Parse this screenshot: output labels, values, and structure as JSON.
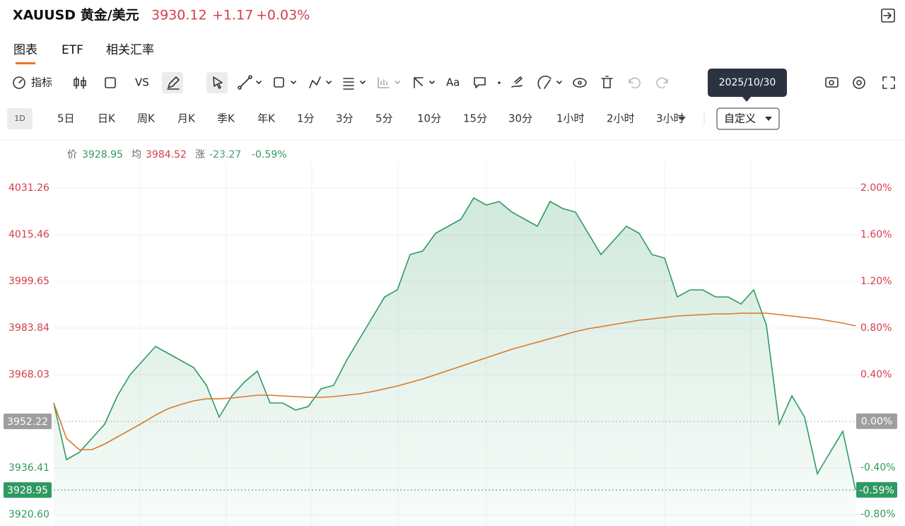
{
  "header": {
    "symbol": "XAUUSD 黄金/美元",
    "price": "3930.12",
    "change": "+1.17",
    "change_pct": "+0.03%"
  },
  "tabs": [
    "图表",
    "ETF",
    "相关汇率"
  ],
  "toolbar": {
    "indicators": "指标",
    "compare": "VS",
    "text": "Aa"
  },
  "tooltip": "2025/10/30",
  "timeframes": [
    "1D",
    "5日",
    "日K",
    "周K",
    "月K",
    "季K",
    "年K",
    "1分",
    "3分",
    "5分",
    "10分",
    "15分",
    "30分",
    "1小时",
    "2小时",
    "3小时"
  ],
  "custom": "自定义",
  "info": {
    "price_label": "价",
    "price": "3928.95",
    "avg_label": "均",
    "avg": "3984.52",
    "change_label": "涨",
    "change": "-23.27",
    "change_pct": "-0.59%"
  },
  "chart_data": {
    "type": "area",
    "ylim": [
      3916.77,
      4039.88
    ],
    "yticks": [
      4031.26,
      4015.46,
      3999.65,
      3983.84,
      3968.03,
      3936.41,
      {
        "value": 3920.6,
        "label": "3920.60"
      }
    ],
    "y2lim": [
      -0.9,
      2.22
    ],
    "y2ticks": [
      {
        "value": 2,
        "label": "2.00%"
      },
      {
        "value": 1.6,
        "label": "1.60%"
      },
      {
        "value": 1.2,
        "label": "1.20%"
      },
      {
        "value": 0.8,
        "label": "0.80%"
      },
      {
        "value": 0.4,
        "label": "0.40%"
      },
      {
        "value": -0.4,
        "label": "-0.40%"
      },
      {
        "value": -0.8,
        "label": "-0.80%"
      }
    ],
    "previous_close": {
      "value": 3952.22,
      "pct": {
        "value": 0,
        "label": "0.00%"
      }
    },
    "last_price": {
      "value": 3928.95,
      "pct": {
        "value": -0.59,
        "label": "-0.59%"
      }
    },
    "grid": true,
    "series": [
      {
        "color": "#2e9a62",
        "fill": true,
        "values": [
          3958.44,
          3939.27,
          3941.67,
          3946.46,
          3951.25,
          3960.83,
          3968.02,
          3972.81,
          3977.6,
          3975.21,
          3972.81,
          3970.41,
          3964.43,
          3953.65,
          3960.83,
          3965.62,
          3969.22,
          3958.44,
          3958.44,
          3956.04,
          3957.24,
          3963.23,
          3964.43,
          3972.81,
          3980.0,
          3987.18,
          3994.37,
          3996.76,
          4008.74,
          4009.94,
          4015.93,
          4018.32,
          4020.72,
          4027.91,
          4025.51,
          4026.71,
          4023.12,
          4020.72,
          4018.32,
          4026.71,
          4024.31,
          4023.12,
          4015.93,
          4008.74,
          4013.53,
          4018.32,
          4015.93,
          4008.74,
          4007.54,
          3994.37,
          3996.76,
          3996.76,
          3994.37,
          3994.37,
          3991.97,
          3996.76,
          3984.79,
          3951.25,
          3960.83,
          3953.65,
          3934.48,
          3941.67,
          3948.85,
          3928.95
        ]
      },
      {
        "color": "#d9782b",
        "fill": false,
        "values": [
          3958.44,
          3946.46,
          3942.63,
          3942.63,
          3944.54,
          3946.94,
          3949.33,
          3951.73,
          3954.36,
          3956.52,
          3957.96,
          3959.16,
          3959.87,
          3959.87,
          3960.11,
          3960.59,
          3961.07,
          3961.07,
          3960.83,
          3960.59,
          3960.35,
          3960.35,
          3960.59,
          3961.07,
          3961.55,
          3962.27,
          3963.23,
          3964.19,
          3965.38,
          3966.58,
          3968.02,
          3969.46,
          3970.89,
          3972.33,
          3973.77,
          3975.21,
          3976.64,
          3977.84,
          3979.04,
          3980.24,
          3981.43,
          3982.63,
          3983.59,
          3984.31,
          3985.03,
          3985.75,
          3986.46,
          3986.94,
          3987.42,
          3987.9,
          3988.14,
          3988.38,
          3988.62,
          3988.62,
          3988.86,
          3988.86,
          3988.86,
          3988.38,
          3987.9,
          3987.42,
          3986.94,
          3986.22,
          3985.51,
          3984.55
        ]
      }
    ]
  }
}
